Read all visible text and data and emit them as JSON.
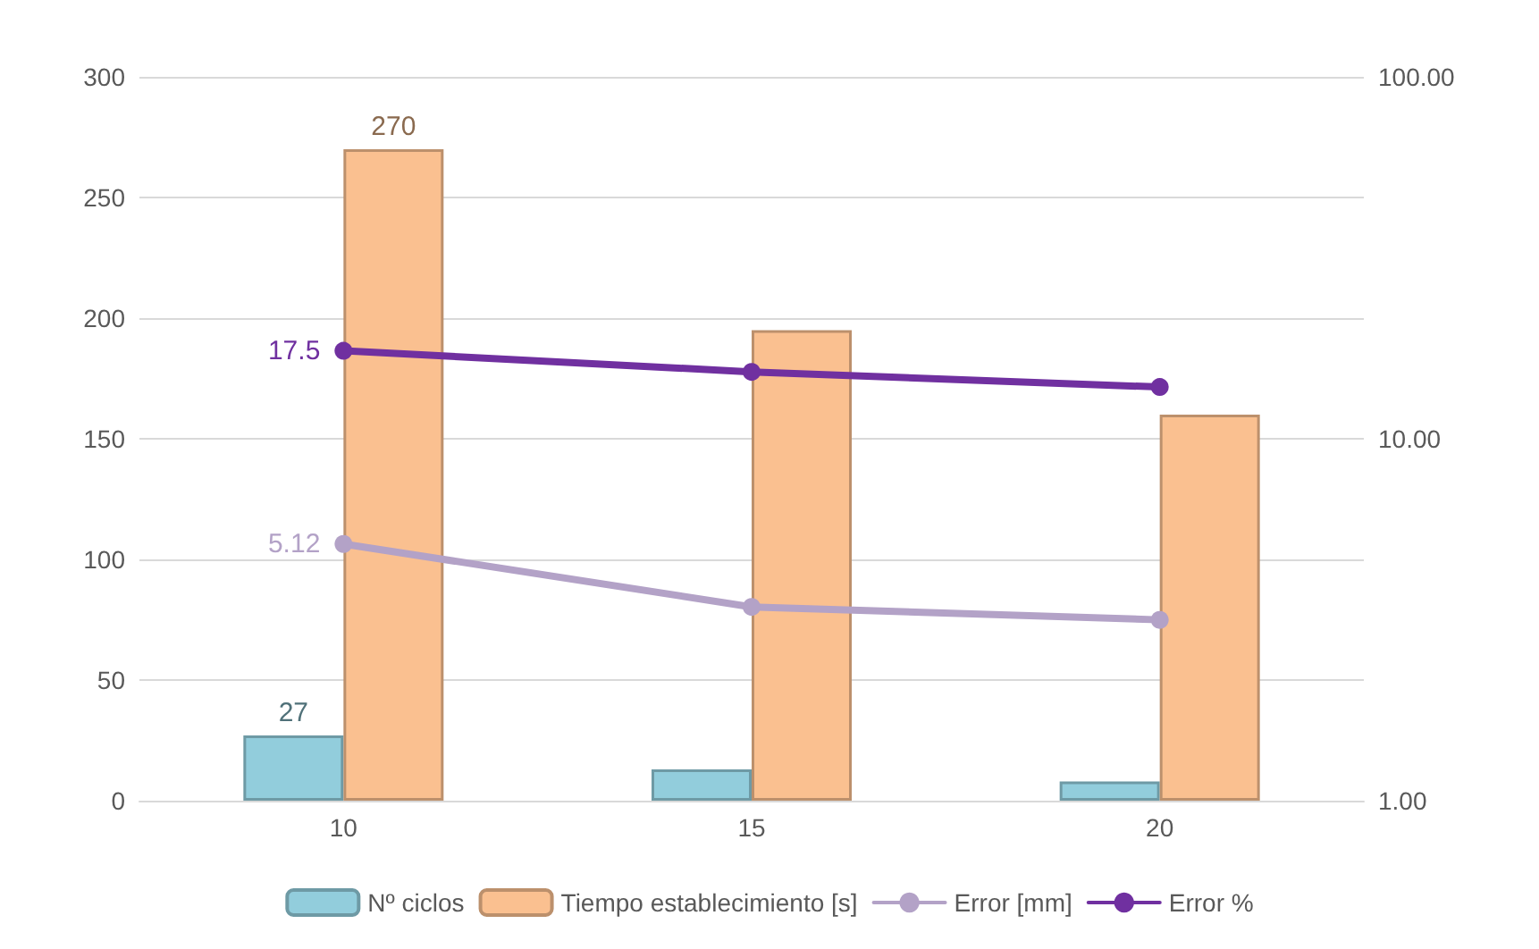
{
  "chart_data": {
    "type": "bar",
    "categories": [
      "10",
      "15",
      "20"
    ],
    "series": [
      {
        "name": "Nº ciclos",
        "color": "#92cddc",
        "values": [
          27,
          13,
          8
        ],
        "value_labels": [
          "27",
          null,
          null
        ]
      },
      {
        "name": "Tiempo establecimiento [s]",
        "color": "#fac090",
        "values": [
          270,
          195,
          160
        ],
        "value_labels": [
          "270",
          null,
          null
        ]
      },
      {
        "name": "Error [mm]",
        "type": "line",
        "axis": "y2",
        "color": "#b3a2c7",
        "values": [
          5.12,
          3.43,
          3.16
        ],
        "value_labels": [
          "5.12",
          null,
          null
        ]
      },
      {
        "name": "Error %",
        "type": "line",
        "axis": "y2",
        "color": "#7030a0",
        "values": [
          17.5,
          15.3,
          13.9
        ],
        "value_labels": [
          "17.5",
          null,
          null
        ]
      }
    ],
    "ylim": [
      0,
      300
    ],
    "yticks": [
      0,
      50,
      100,
      150,
      200,
      250,
      300
    ],
    "y2lim": [
      1,
      100
    ],
    "y2ticks": [
      {
        "value": 1,
        "label": "1.00"
      },
      {
        "value": 10,
        "label": "10.00"
      },
      {
        "value": 100,
        "label": "100.00"
      }
    ],
    "log": "y2",
    "grid": "y",
    "legend": "bottom",
    "marker": "circle",
    "line_style": "solid"
  }
}
